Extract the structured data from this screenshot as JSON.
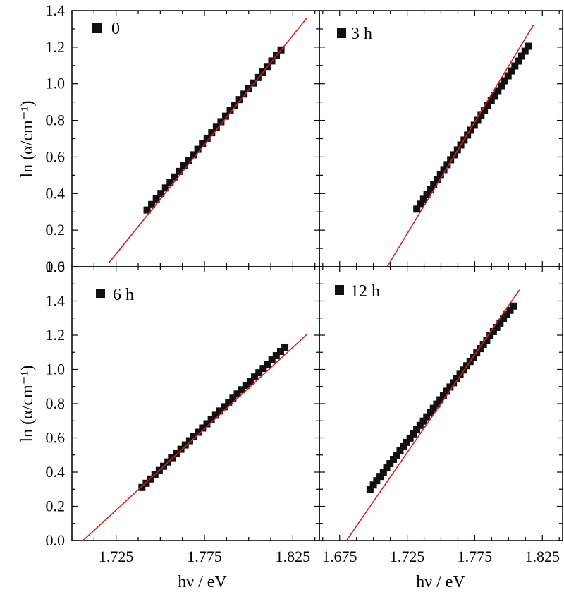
{
  "chart_data": [
    {
      "type": "scatter",
      "legend": "0",
      "xlim": [
        1.7,
        1.84
      ],
      "ylim": [
        0,
        1.4
      ],
      "x_ticks": [
        "1.725",
        "1.775",
        "1.825"
      ],
      "y_ticks": [
        "0.0",
        "0.2",
        "0.4",
        "0.6",
        "0.8",
        "1.0",
        "1.2",
        "1.4"
      ],
      "ylabel": "ln (α/cm⁻¹)",
      "xlabel": "",
      "points": {
        "x_start": 1.7425,
        "x_end": 1.8183,
        "y_start": 0.31,
        "y_end": 1.185,
        "n": 30
      },
      "fit": {
        "x": [
          1.7208,
          1.833
        ],
        "y": [
          0.02,
          1.36
        ]
      }
    },
    {
      "type": "scatter",
      "legend": "3 h",
      "xlim": [
        1.66,
        1.84
      ],
      "ylim": [
        0,
        1.4
      ],
      "x_ticks": [
        "1.675",
        "1.725",
        "1.775",
        "1.825"
      ],
      "y_ticks": [],
      "ylabel": "",
      "xlabel": "",
      "points": {
        "x_start": 1.7321,
        "x_end": 1.8147,
        "y_start": 0.315,
        "y_end": 1.205,
        "n": 34
      },
      "fit": {
        "x": [
          1.7102,
          1.8183
        ],
        "y": [
          0.0,
          1.32
        ]
      }
    },
    {
      "type": "scatter",
      "legend": "6 h",
      "xlim": [
        1.7,
        1.84
      ],
      "ylim": [
        0,
        1.6
      ],
      "x_ticks": [
        "1.725",
        "1.775",
        "1.825"
      ],
      "y_ticks": [
        "0.0",
        "0.2",
        "0.4",
        "0.6",
        "0.8",
        "1.0",
        "1.2",
        "1.4",
        "1.6"
      ],
      "ylabel": "ln (α/cm⁻¹)",
      "xlabel": "hν / eV",
      "points": {
        "x_start": 1.7396,
        "x_end": 1.8205,
        "y_start": 0.31,
        "y_end": 1.13,
        "n": 34
      },
      "fit": {
        "x": [
          1.7063,
          1.833
        ],
        "y": [
          0.0,
          1.205
        ]
      }
    },
    {
      "type": "scatter",
      "legend": "12 h",
      "xlim": [
        1.66,
        1.84
      ],
      "ylim": [
        0,
        1.6
      ],
      "x_ticks": [
        "1.675",
        "1.725",
        "1.775",
        "1.825"
      ],
      "y_ticks": [],
      "ylabel": "",
      "xlabel": "hν / eV",
      "points": {
        "x_start": 1.6975,
        "x_end": 1.8036,
        "y_start": 0.3,
        "y_end": 1.37,
        "n": 44
      },
      "fit": {
        "x": [
          1.6801,
          1.8081
        ],
        "y": [
          0.0,
          1.465
        ]
      }
    }
  ]
}
